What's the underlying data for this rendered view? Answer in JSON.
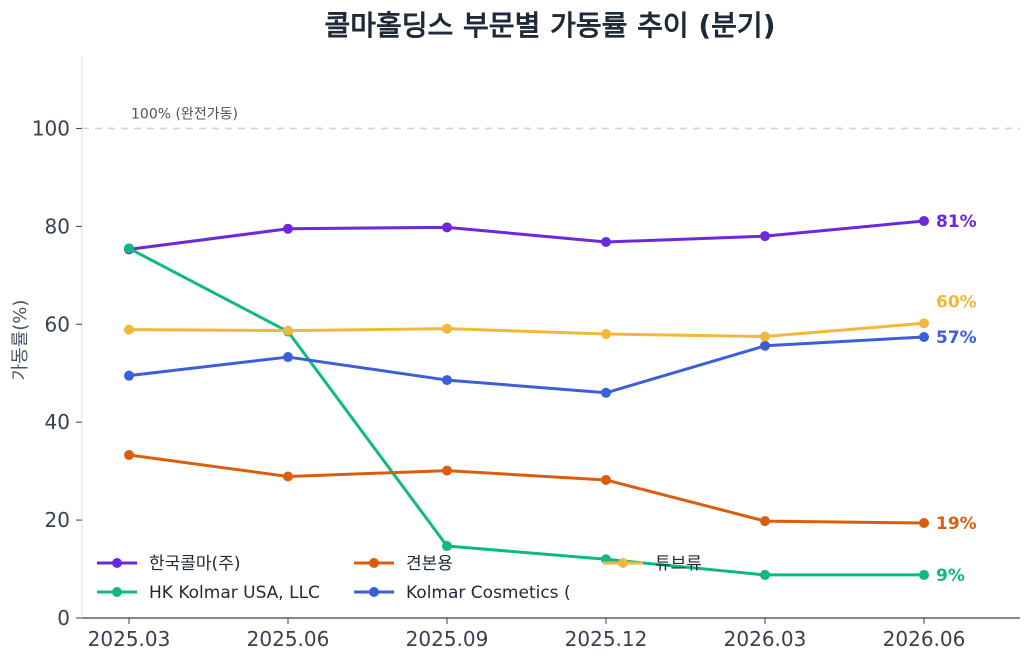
{
  "chart_data": {
    "type": "line",
    "title": "콜마홀딩스 부문별 가동률 추이 (분기)",
    "xlabel": "",
    "ylabel": "가동률(%)",
    "categories": [
      "2025.03",
      "2025.06",
      "2025.09",
      "2025.12",
      "2026.03",
      "2026.06"
    ],
    "ylim": [
      0,
      115
    ],
    "yticks": [
      0,
      20,
      40,
      60,
      80,
      100
    ],
    "grid": false,
    "legend_position": "lower-left",
    "reference_line": {
      "y": 100,
      "label": "100% (완전가동)"
    },
    "series": [
      {
        "name": "한국콜마(주)",
        "color": "#6d28d9",
        "values": [
          75.3,
          79.5,
          79.8,
          76.8,
          78.0,
          81.1
        ],
        "end_label": "81%"
      },
      {
        "name": "HK Kolmar USA, LLC",
        "color": "#10b981",
        "values": [
          75.5,
          58.5,
          14.7,
          12.0,
          8.8,
          8.8
        ],
        "end_label": "9%"
      },
      {
        "name": "견본용",
        "color": "#d95f0e",
        "values": [
          33.3,
          28.9,
          30.1,
          28.2,
          19.8,
          19.4
        ],
        "end_label": "19%"
      },
      {
        "name": "Kolmar Cosmetics (",
        "color": "#3b5fd9",
        "values": [
          49.5,
          53.3,
          48.6,
          46.0,
          55.6,
          57.4
        ],
        "end_label": "57%"
      },
      {
        "name": "튜브류",
        "color": "#f2b83b",
        "values": [
          58.9,
          58.7,
          59.1,
          58.0,
          57.5,
          60.2
        ],
        "end_label": "60%"
      }
    ]
  }
}
